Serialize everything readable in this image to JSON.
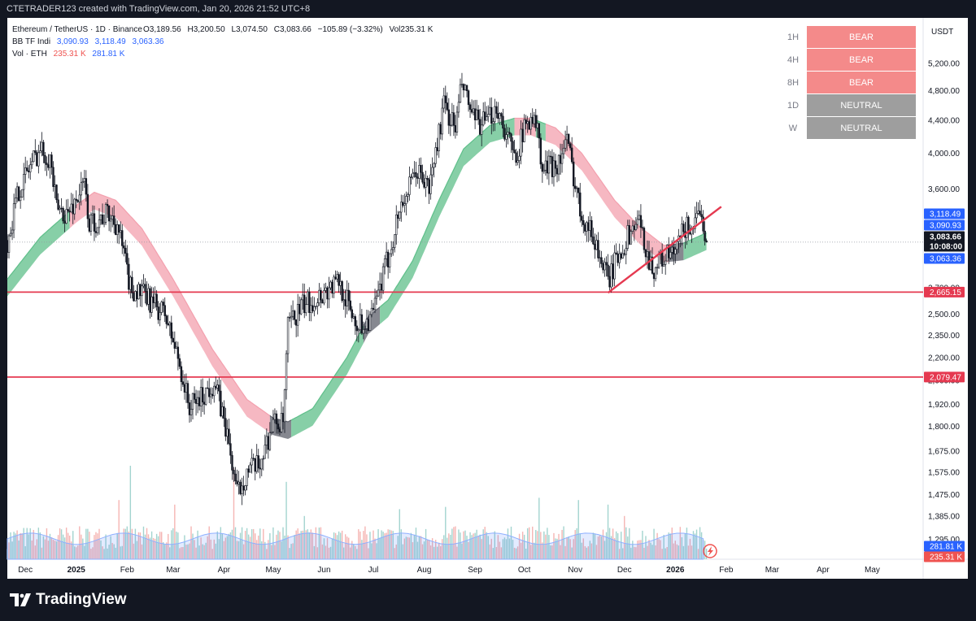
{
  "header": {
    "credit": "CTETRADER123 created with TradingView.com, Jan 20, 2026 21:52 UTC+8"
  },
  "legend": {
    "symbol_line": "Ethereum / TetherUS · 1D · Binance",
    "ohlc": {
      "o": "O3,189.56",
      "h": "H3,200.50",
      "l": "L3,074.50",
      "c": "C3,083.66",
      "chg": "−105.89 (−3.32%)",
      "vol": "Vol235.31 K"
    },
    "bb": {
      "name": "BB TF Indi",
      "v1": "3,090.93",
      "v2": "3,118.49",
      "v3": "3,063.36"
    },
    "vol": {
      "name": "Vol · ETH",
      "v1": "235.31 K",
      "v2": "281.81 K"
    }
  },
  "tf_table": [
    {
      "tf": "1H",
      "status": "BEAR",
      "color": "#f48a8a"
    },
    {
      "tf": "4H",
      "status": "BEAR",
      "color": "#f48a8a"
    },
    {
      "tf": "8H",
      "status": "BEAR",
      "color": "#f48a8a"
    },
    {
      "tf": "1D",
      "status": "NEUTRAL",
      "color": "#9e9e9e"
    },
    {
      "tf": "W",
      "status": "NEUTRAL",
      "color": "#9e9e9e"
    }
  ],
  "colors": {
    "up": "#26a69a",
    "down": "#ef5350",
    "candle": "#131722",
    "band_bull": "#5fbf8a",
    "band_bear": "#f3a0ae",
    "band_neutral": "#5d606b",
    "level_line": "#e53950",
    "trend_line": "#e53950"
  },
  "chart_data": {
    "type": "candlestick",
    "title": "Ethereum / TetherUS · 1D · Binance",
    "y_unit": "USDT",
    "y_scale": "log",
    "ylim": [
      1290,
      5450
    ],
    "x_range": [
      "2024-11-20",
      "2026-06-01"
    ],
    "y_ticks": [
      5200,
      4800,
      4400,
      4000,
      3600,
      2700,
      2500,
      2350,
      2200,
      2060,
      1920,
      1800,
      1675,
      1575,
      1475,
      1385,
      1295
    ],
    "y_tick_labels": [
      "5,200.00",
      "4,800.00",
      "4,400.00",
      "4,000.00",
      "3,600.00",
      "2,700.00",
      "2,500.00",
      "2,350.00",
      "2,200.00",
      "2,060.00",
      "1,920.00",
      "1,800.00",
      "1,675.00",
      "1,575.00",
      "1,475.00",
      "1,385.00",
      "1,295.00"
    ],
    "x_ticks": [
      {
        "date": "2024-12-01",
        "label": "Dec",
        "bold": false
      },
      {
        "date": "2025-01-01",
        "label": "2025",
        "bold": true
      },
      {
        "date": "2025-02-01",
        "label": "Feb",
        "bold": false
      },
      {
        "date": "2025-03-01",
        "label": "Mar",
        "bold": false
      },
      {
        "date": "2025-04-01",
        "label": "Apr",
        "bold": false
      },
      {
        "date": "2025-05-01",
        "label": "May",
        "bold": false
      },
      {
        "date": "2025-06-01",
        "label": "Jun",
        "bold": false
      },
      {
        "date": "2025-07-01",
        "label": "Jul",
        "bold": false
      },
      {
        "date": "2025-08-01",
        "label": "Aug",
        "bold": false
      },
      {
        "date": "2025-09-01",
        "label": "Sep",
        "bold": false
      },
      {
        "date": "2025-10-01",
        "label": "Oct",
        "bold": false
      },
      {
        "date": "2025-11-01",
        "label": "Nov",
        "bold": false
      },
      {
        "date": "2025-12-01",
        "label": "Dec",
        "bold": false
      },
      {
        "date": "2026-01-01",
        "label": "2026",
        "bold": true
      },
      {
        "date": "2026-02-01",
        "label": "Feb",
        "bold": false
      },
      {
        "date": "2026-03-01",
        "label": "Mar",
        "bold": false
      },
      {
        "date": "2026-04-01",
        "label": "Apr",
        "bold": false
      },
      {
        "date": "2026-05-01",
        "label": "May",
        "bold": false
      }
    ],
    "price_path": [
      [
        "2024-11-20",
        3100
      ],
      [
        "2024-11-27",
        3600
      ],
      [
        "2024-12-05",
        3900
      ],
      [
        "2024-12-10",
        4050
      ],
      [
        "2024-12-16",
        3950
      ],
      [
        "2024-12-20",
        3400
      ],
      [
        "2024-12-27",
        3350
      ],
      [
        "2025-01-06",
        3650
      ],
      [
        "2025-01-09",
        3250
      ],
      [
        "2025-01-15",
        3300
      ],
      [
        "2025-01-20",
        3350
      ],
      [
        "2025-01-26",
        3250
      ],
      [
        "2025-02-03",
        2700
      ],
      [
        "2025-02-10",
        2650
      ],
      [
        "2025-02-24",
        2500
      ],
      [
        "2025-03-04",
        2200
      ],
      [
        "2025-03-11",
        1900
      ],
      [
        "2025-03-20",
        1980
      ],
      [
        "2025-03-26",
        2050
      ],
      [
        "2025-04-02",
        1800
      ],
      [
        "2025-04-09",
        1480
      ],
      [
        "2025-04-15",
        1580
      ],
      [
        "2025-04-22",
        1600
      ],
      [
        "2025-05-01",
        1820
      ],
      [
        "2025-05-07",
        1810
      ],
      [
        "2025-05-10",
        2400
      ],
      [
        "2025-05-18",
        2550
      ],
      [
        "2025-05-27",
        2620
      ],
      [
        "2025-06-10",
        2750
      ],
      [
        "2025-06-20",
        2450
      ],
      [
        "2025-06-24",
        2420
      ],
      [
        "2025-07-01",
        2500
      ],
      [
        "2025-07-10",
        2950
      ],
      [
        "2025-07-17",
        3400
      ],
      [
        "2025-07-28",
        3800
      ],
      [
        "2025-08-04",
        3600
      ],
      [
        "2025-08-13",
        4600
      ],
      [
        "2025-08-20",
        4300
      ],
      [
        "2025-08-24",
        4900
      ],
      [
        "2025-08-31",
        4400
      ],
      [
        "2025-09-08",
        4350
      ],
      [
        "2025-09-14",
        4600
      ],
      [
        "2025-09-25",
        3950
      ],
      [
        "2025-10-05",
        4500
      ],
      [
        "2025-10-10",
        4200
      ],
      [
        "2025-10-11",
        3800
      ],
      [
        "2025-10-22",
        3900
      ],
      [
        "2025-10-27",
        4150
      ],
      [
        "2025-11-04",
        3400
      ],
      [
        "2025-11-13",
        3100
      ],
      [
        "2025-11-21",
        2750
      ],
      [
        "2025-11-28",
        3000
      ],
      [
        "2025-12-09",
        3300
      ],
      [
        "2025-12-18",
        2850
      ],
      [
        "2025-12-25",
        2950
      ],
      [
        "2026-01-01",
        2980
      ],
      [
        "2026-01-06",
        3200
      ],
      [
        "2026-01-12",
        3250
      ],
      [
        "2026-01-18",
        3280
      ],
      [
        "2026-01-20",
        3084
      ]
    ],
    "band_path": [
      [
        "2024-11-20",
        2700
      ],
      [
        "2024-12-10",
        3050
      ],
      [
        "2025-01-01",
        3350
      ],
      [
        "2025-01-12",
        3480
      ],
      [
        "2025-01-25",
        3400
      ],
      [
        "2025-02-10",
        3130
      ],
      [
        "2025-03-01",
        2700
      ],
      [
        "2025-03-25",
        2200
      ],
      [
        "2025-04-15",
        1900
      ],
      [
        "2025-05-01",
        1800
      ],
      [
        "2025-05-10",
        1780
      ],
      [
        "2025-05-25",
        1850
      ],
      [
        "2025-06-15",
        2150
      ],
      [
        "2025-06-28",
        2420
      ],
      [
        "2025-07-10",
        2540
      ],
      [
        "2025-07-25",
        2850
      ],
      [
        "2025-08-10",
        3400
      ],
      [
        "2025-08-25",
        3950
      ],
      [
        "2025-09-10",
        4230
      ],
      [
        "2025-09-25",
        4320
      ],
      [
        "2025-10-05",
        4320
      ],
      [
        "2025-10-20",
        4200
      ],
      [
        "2025-11-05",
        3900
      ],
      [
        "2025-11-25",
        3400
      ],
      [
        "2025-12-10",
        3150
      ],
      [
        "2025-12-25",
        2980
      ],
      [
        "2026-01-06",
        3000
      ],
      [
        "2026-01-20",
        3091
      ]
    ],
    "band_segments": [
      {
        "from": "2024-11-20",
        "to": "2024-12-28",
        "state": "bull"
      },
      {
        "from": "2024-12-28",
        "to": "2025-04-29",
        "state": "bear"
      },
      {
        "from": "2025-04-29",
        "to": "2025-05-12",
        "state": "neutral"
      },
      {
        "from": "2025-05-12",
        "to": "2025-06-25",
        "state": "bull"
      },
      {
        "from": "2025-06-25",
        "to": "2025-07-05",
        "state": "neutral"
      },
      {
        "from": "2025-07-05",
        "to": "2025-09-25",
        "state": "bull"
      },
      {
        "from": "2025-09-25",
        "to": "2025-10-08",
        "state": "bear"
      },
      {
        "from": "2025-10-08",
        "to": "2025-10-14",
        "state": "bull"
      },
      {
        "from": "2025-10-14",
        "to": "2025-12-28",
        "state": "bear"
      },
      {
        "from": "2025-12-28",
        "to": "2026-01-06",
        "state": "neutral"
      },
      {
        "from": "2026-01-06",
        "to": "2026-01-20",
        "state": "bull"
      }
    ],
    "horizontal_levels": [
      2665.15,
      2079.47
    ],
    "trend_line": {
      "from": [
        "2025-11-21",
        2660
      ],
      "to": [
        "2026-01-29",
        3420
      ]
    },
    "price_labels": [
      {
        "label": "3,118.49",
        "value": 3118.49,
        "bg": "#2962ff"
      },
      {
        "label": "3,090.93",
        "value": 3090.93,
        "bg": "#2962ff"
      },
      {
        "label": "3,083.66",
        "value": 3083.66,
        "bg": "#131722"
      },
      {
        "label": "10:08:00",
        "value": 3083.66,
        "bg": "#131722"
      },
      {
        "label": "3,063.36",
        "value": 3063.36,
        "bg": "#2962ff"
      },
      {
        "label": "2,665.15",
        "value": 2665.15,
        "bg": "#e53950"
      },
      {
        "label": "2,079.47",
        "value": 2079.47,
        "bg": "#e53950"
      }
    ],
    "volume_labels": [
      {
        "label": "281.81 K",
        "bg": "#2962ff"
      },
      {
        "label": "235.31 K",
        "bg": "#ef5350"
      }
    ],
    "volume_spikes": [
      [
        "2025-01-27",
        2.6
      ],
      [
        "2025-02-03",
        4.2
      ],
      [
        "2025-03-02",
        2.4
      ],
      [
        "2025-04-07",
        4.0
      ],
      [
        "2025-05-09",
        3.4
      ],
      [
        "2025-05-20",
        1.9
      ],
      [
        "2025-07-17",
        2.2
      ],
      [
        "2025-08-14",
        2.3
      ],
      [
        "2025-10-10",
        2.7
      ],
      [
        "2025-11-03",
        2.6
      ],
      [
        "2025-11-21",
        2.4
      ],
      [
        "2025-12-01",
        1.9
      ]
    ],
    "volume_average_level": 1.0
  },
  "brand": {
    "name": "TradingView"
  }
}
